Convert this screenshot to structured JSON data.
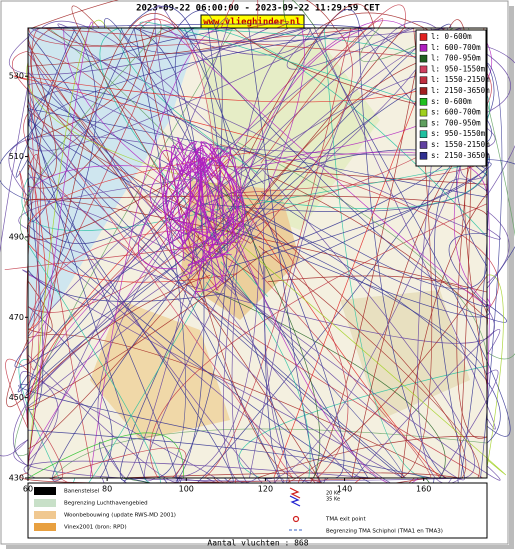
{
  "header": {
    "title": "2023-09-22 06:00:00 - 2023-09-22 11:29:59 CET",
    "url": "www.vlieghinder.nl"
  },
  "map": {
    "xlim": [
      60,
      176
    ],
    "ylim": [
      430,
      542
    ],
    "xticks": [
      60,
      80,
      100,
      120,
      140,
      160
    ],
    "yticks": [
      430,
      450,
      470,
      490,
      510,
      530
    ]
  },
  "legend": [
    {
      "label": "l: 0-600m",
      "color": "#e02020"
    },
    {
      "label": "l: 600-700m",
      "color": "#b020c0"
    },
    {
      "label": "l: 700-950m",
      "color": "#206020"
    },
    {
      "label": "l: 950-1550m",
      "color": "#d04060"
    },
    {
      "label": "l: 1550-2150m",
      "color": "#c03040"
    },
    {
      "label": "l: 2150-3650m",
      "color": "#a02020"
    },
    {
      "label": "s: 0-600m",
      "color": "#20c020"
    },
    {
      "label": "s: 600-700m",
      "color": "#a0d020"
    },
    {
      "label": "s: 700-950m",
      "color": "#60a060"
    },
    {
      "label": "s: 950-1550m",
      "color": "#20c0a0"
    },
    {
      "label": "s: 1550-2150m",
      "color": "#6040a0"
    },
    {
      "label": "s: 2150-3650m",
      "color": "#303090"
    }
  ],
  "bottom_legend": {
    "left": [
      "Banenstelsel",
      "Begrenzing Luchthavengebied",
      "Woonbebouwing (update RWS-MD 2001)",
      "Vinex2001 (bron: RPD)"
    ],
    "noise": [
      "20 Ke",
      "35 Ke"
    ],
    "tma_exit": "TMA exit point",
    "tma_border": "Begrenzing TMA Schiphol  (TMA1 en TMA3)"
  },
  "footer": "Aantal vluchten : 868"
}
